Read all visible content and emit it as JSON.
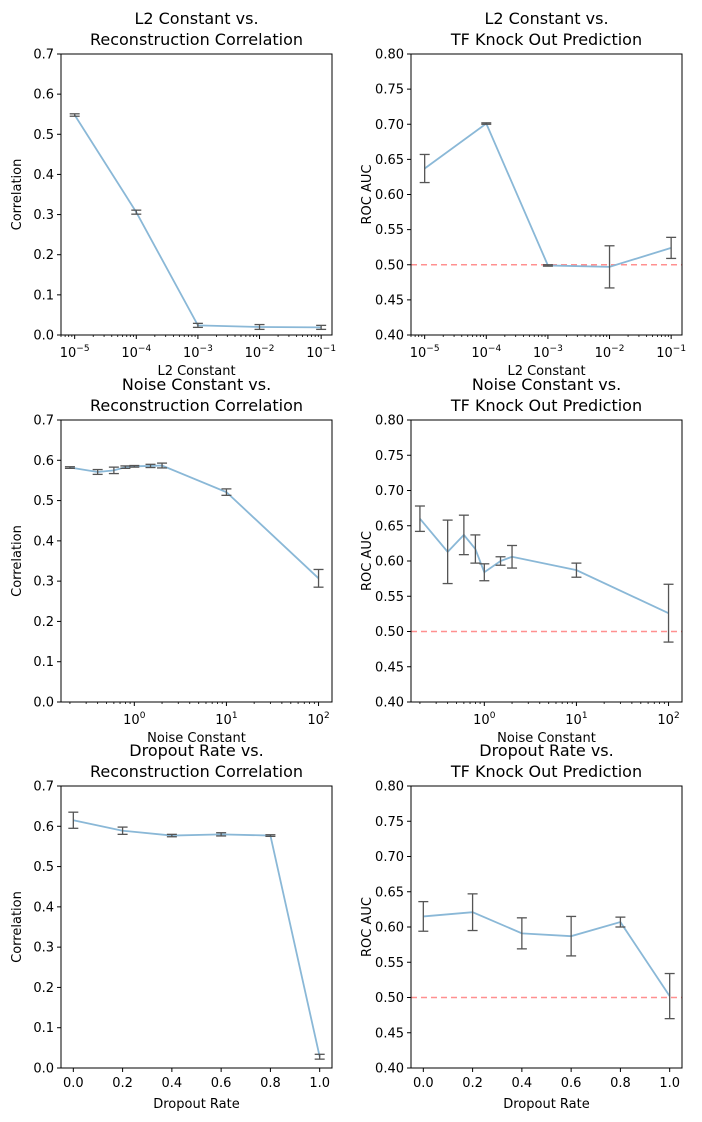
{
  "chart_data": [
    {
      "type": "line",
      "title": [
        "L2 Constant vs.",
        "Reconstruction Correlation"
      ],
      "xlabel": "L2 Constant",
      "ylabel": "Correlation",
      "xscale": "log",
      "xlim": [
        6e-06,
        0.15
      ],
      "ylim": [
        0,
        0.7
      ],
      "xticks": [
        1e-05,
        0.0001,
        0.001,
        0.01,
        0.1
      ],
      "xticklabels": [
        [
          "10",
          "−5"
        ],
        [
          "10",
          "−4"
        ],
        [
          "10",
          "−3"
        ],
        [
          "10",
          "−2"
        ],
        [
          "10",
          "−1"
        ]
      ],
      "yticks": [
        0.0,
        0.1,
        0.2,
        0.3,
        0.4,
        0.5,
        0.6,
        0.7
      ],
      "yticklabels": [
        "0.0",
        "0.1",
        "0.2",
        "0.3",
        "0.4",
        "0.5",
        "0.6",
        "0.7"
      ],
      "x": [
        1e-05,
        0.0001,
        0.001,
        0.01,
        0.1
      ],
      "y": [
        0.548,
        0.306,
        0.024,
        0.02,
        0.019
      ],
      "err": [
        0.003,
        0.005,
        0.005,
        0.006,
        0.005
      ],
      "baseline": null,
      "line_color": "#8ab8d7",
      "err_color": "#555555"
    },
    {
      "type": "line",
      "title": [
        "L2 Constant vs.",
        "TF Knock Out Prediction"
      ],
      "xlabel": "L2 Constant",
      "ylabel": "ROC AUC",
      "xscale": "log",
      "xlim": [
        6e-06,
        0.15
      ],
      "ylim": [
        0.4,
        0.8
      ],
      "xticks": [
        1e-05,
        0.0001,
        0.001,
        0.01,
        0.1
      ],
      "xticklabels": [
        [
          "10",
          "−5"
        ],
        [
          "10",
          "−4"
        ],
        [
          "10",
          "−3"
        ],
        [
          "10",
          "−2"
        ],
        [
          "10",
          "−1"
        ]
      ],
      "yticks": [
        0.4,
        0.45,
        0.5,
        0.55,
        0.6,
        0.65,
        0.7,
        0.75,
        0.8
      ],
      "yticklabels": [
        "0.40",
        "0.45",
        "0.50",
        "0.55",
        "0.60",
        "0.65",
        "0.70",
        "0.75",
        "0.80"
      ],
      "x": [
        1e-05,
        0.0001,
        0.001,
        0.01,
        0.1
      ],
      "y": [
        0.637,
        0.701,
        0.499,
        0.497,
        0.524
      ],
      "err": [
        0.02,
        0.001,
        0.001,
        0.03,
        0.015
      ],
      "baseline": 0.5,
      "line_color": "#8ab8d7",
      "err_color": "#555555"
    },
    {
      "type": "line",
      "title": [
        "Noise Constant vs.",
        "Reconstruction Correlation"
      ],
      "xlabel": "Noise Constant",
      "ylabel": "Correlation",
      "xscale": "log",
      "xlim": [
        0.16,
        140
      ],
      "ylim": [
        0,
        0.7
      ],
      "xticks": [
        1,
        10,
        100
      ],
      "xticklabels": [
        [
          "10",
          "0"
        ],
        [
          "10",
          "1"
        ],
        [
          "10",
          "2"
        ]
      ],
      "yticks": [
        0.0,
        0.1,
        0.2,
        0.3,
        0.4,
        0.5,
        0.6,
        0.7
      ],
      "yticklabels": [
        "0.0",
        "0.1",
        "0.2",
        "0.3",
        "0.4",
        "0.5",
        "0.6",
        "0.7"
      ],
      "x": [
        0.2,
        0.4,
        0.6,
        0.8,
        1.0,
        1.5,
        2.0,
        10,
        100
      ],
      "y": [
        0.582,
        0.571,
        0.575,
        0.583,
        0.585,
        0.586,
        0.587,
        0.521,
        0.307
      ],
      "err": [
        0.002,
        0.006,
        0.008,
        0.003,
        0.002,
        0.004,
        0.006,
        0.008,
        0.022
      ],
      "baseline": null,
      "line_color": "#8ab8d7",
      "err_color": "#555555"
    },
    {
      "type": "line",
      "title": [
        "Noise Constant vs.",
        "TF Knock Out Prediction"
      ],
      "xlabel": "Noise Constant",
      "ylabel": "ROC AUC",
      "xscale": "log",
      "xlim": [
        0.16,
        140
      ],
      "ylim": [
        0.4,
        0.8
      ],
      "xticks": [
        1,
        10,
        100
      ],
      "xticklabels": [
        [
          "10",
          "0"
        ],
        [
          "10",
          "1"
        ],
        [
          "10",
          "2"
        ]
      ],
      "yticks": [
        0.4,
        0.45,
        0.5,
        0.55,
        0.6,
        0.65,
        0.7,
        0.75,
        0.8
      ],
      "yticklabels": [
        "0.40",
        "0.45",
        "0.50",
        "0.55",
        "0.60",
        "0.65",
        "0.70",
        "0.75",
        "0.80"
      ],
      "x": [
        0.2,
        0.4,
        0.6,
        0.8,
        1.0,
        1.5,
        2.0,
        10,
        100
      ],
      "y": [
        0.66,
        0.613,
        0.637,
        0.617,
        0.584,
        0.6,
        0.606,
        0.587,
        0.526
      ],
      "err": [
        0.018,
        0.045,
        0.028,
        0.02,
        0.012,
        0.006,
        0.016,
        0.01,
        0.041
      ],
      "baseline": 0.5,
      "line_color": "#8ab8d7",
      "err_color": "#555555"
    },
    {
      "type": "line",
      "title": [
        "Dropout Rate vs.",
        "Reconstruction Correlation"
      ],
      "xlabel": "Dropout Rate",
      "ylabel": "Correlation",
      "xscale": "linear",
      "xlim": [
        -0.05,
        1.05
      ],
      "ylim": [
        0,
        0.7
      ],
      "xticks": [
        0.0,
        0.2,
        0.4,
        0.6,
        0.8,
        1.0
      ],
      "xticklabels": [
        "0.0",
        "0.2",
        "0.4",
        "0.6",
        "0.8",
        "1.0"
      ],
      "yticks": [
        0.0,
        0.1,
        0.2,
        0.3,
        0.4,
        0.5,
        0.6,
        0.7
      ],
      "yticklabels": [
        "0.0",
        "0.1",
        "0.2",
        "0.3",
        "0.4",
        "0.5",
        "0.6",
        "0.7"
      ],
      "x": [
        0.0,
        0.2,
        0.4,
        0.6,
        0.8,
        1.0
      ],
      "y": [
        0.615,
        0.589,
        0.577,
        0.58,
        0.577,
        0.028
      ],
      "err": [
        0.02,
        0.009,
        0.003,
        0.004,
        0.002,
        0.006
      ],
      "baseline": null,
      "line_color": "#8ab8d7",
      "err_color": "#555555"
    },
    {
      "type": "line",
      "title": [
        "Dropout Rate vs.",
        "TF Knock Out Prediction"
      ],
      "xlabel": "Dropout Rate",
      "ylabel": "ROC AUC",
      "xscale": "linear",
      "xlim": [
        -0.05,
        1.05
      ],
      "ylim": [
        0.4,
        0.8
      ],
      "xticks": [
        0.0,
        0.2,
        0.4,
        0.6,
        0.8,
        1.0
      ],
      "xticklabels": [
        "0.0",
        "0.2",
        "0.4",
        "0.6",
        "0.8",
        "1.0"
      ],
      "yticks": [
        0.4,
        0.45,
        0.5,
        0.55,
        0.6,
        0.65,
        0.7,
        0.75,
        0.8
      ],
      "yticklabels": [
        "0.40",
        "0.45",
        "0.50",
        "0.55",
        "0.60",
        "0.65",
        "0.70",
        "0.75",
        "0.80"
      ],
      "x": [
        0.0,
        0.2,
        0.4,
        0.6,
        0.8,
        1.0
      ],
      "y": [
        0.615,
        0.621,
        0.591,
        0.587,
        0.607,
        0.502
      ],
      "err": [
        0.021,
        0.026,
        0.022,
        0.028,
        0.007,
        0.032
      ],
      "baseline": 0.5,
      "line_color": "#8ab8d7",
      "err_color": "#555555"
    }
  ]
}
